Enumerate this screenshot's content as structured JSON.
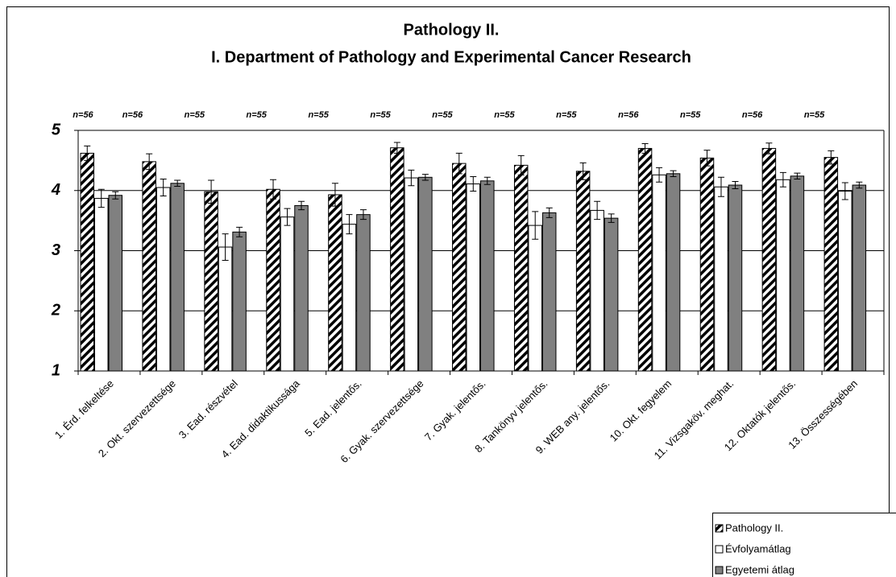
{
  "chart_data": {
    "type": "bar",
    "title": "Pathology II.",
    "subtitle": "I. Department of Pathology and Experimental Cancer Research",
    "categories": [
      "1. Érd. felkeltése",
      "2. Okt. szervezettsége",
      "3. Ead. részvétel",
      "4. Ead. didaktikussága",
      "5. Ead. jelentős.",
      "6. Gyak. szervezettsége",
      "7. Gyak. jelentős.",
      "8. Tankönyv jelentős.",
      "9. WEB any. jelentős.",
      "10. Okt. fegyelem",
      "11. Vizsgaköv. meghat.",
      "12. Oktatók jelentős.",
      "13. Összességében"
    ],
    "annotations": [
      "n=56",
      "n=56",
      "n=55",
      "n=55",
      "n=55",
      "n=55",
      "n=55",
      "n=55",
      "n=55",
      "n=56",
      "n=55",
      "n=56",
      "n=55"
    ],
    "series": [
      {
        "name": "Pathology II.",
        "color": "#000000",
        "pattern": "diagonal-stripes",
        "values": [
          4.62,
          4.48,
          3.98,
          4.02,
          3.93,
          4.71,
          4.45,
          4.42,
          4.32,
          4.7,
          4.54,
          4.7,
          4.55
        ],
        "errors": [
          0.12,
          0.13,
          0.19,
          0.16,
          0.19,
          0.09,
          0.17,
          0.16,
          0.14,
          0.08,
          0.13,
          0.09,
          0.11
        ]
      },
      {
        "name": "Évfolyamátlag",
        "color": "#ffffff",
        "values": [
          3.87,
          4.05,
          3.06,
          3.56,
          3.44,
          4.21,
          4.11,
          3.42,
          3.67,
          4.26,
          4.06,
          4.18,
          3.99
        ],
        "errors": [
          0.15,
          0.14,
          0.22,
          0.14,
          0.16,
          0.13,
          0.12,
          0.23,
          0.15,
          0.12,
          0.16,
          0.12,
          0.14
        ]
      },
      {
        "name": "Egyetemi átlag",
        "color": "#808080",
        "values": [
          3.92,
          4.12,
          3.31,
          3.75,
          3.6,
          4.22,
          4.16,
          3.63,
          3.54,
          4.28,
          4.09,
          4.24,
          4.09
        ],
        "errors": [
          0.06,
          0.05,
          0.08,
          0.07,
          0.08,
          0.05,
          0.06,
          0.08,
          0.07,
          0.05,
          0.06,
          0.05,
          0.05
        ]
      }
    ],
    "ylim": [
      1,
      5
    ],
    "yticks": [
      1,
      2,
      3,
      4,
      5
    ],
    "grid": true,
    "legend": "lower right"
  }
}
